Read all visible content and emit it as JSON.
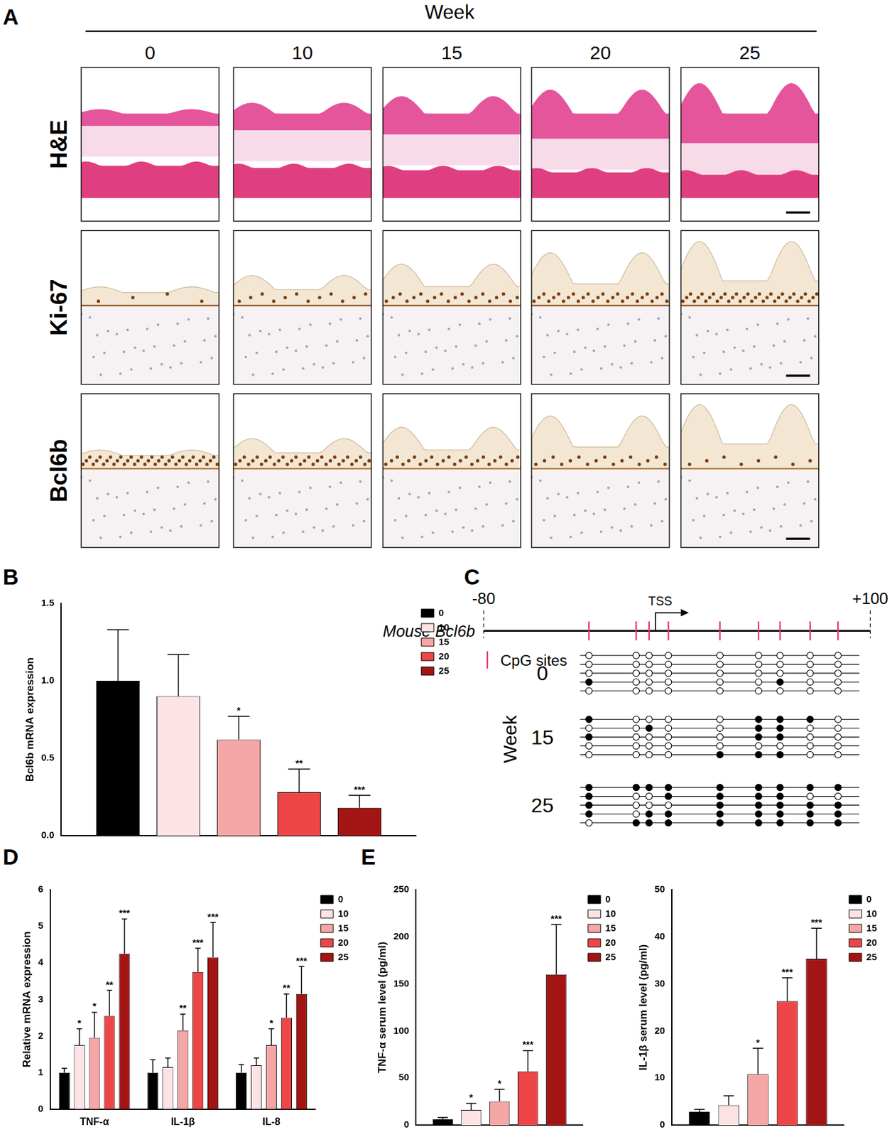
{
  "panel_labels": [
    "A",
    "B",
    "C",
    "D",
    "E"
  ],
  "panel_A": {
    "header": "Week",
    "columns": [
      "0",
      "10",
      "15",
      "20",
      "25"
    ],
    "rows": [
      "H&E",
      "Ki-67",
      "Bcl6b"
    ]
  },
  "panel_C": {
    "gene": "Mouse Bcl6b",
    "start": {
      "value": -80,
      "label": "-80"
    },
    "end": {
      "value": 100,
      "label": "+100"
    },
    "tss": {
      "value": 0,
      "label": "TSS"
    },
    "cpg_label": "CpG sites",
    "cpg_positions": [
      -31,
      -9,
      -3,
      6,
      30,
      48,
      58,
      72,
      85
    ],
    "group_title": "Week",
    "groups": [
      {
        "label": "0",
        "methylated": [
          [
            0,
            0,
            0,
            0,
            0,
            0,
            0,
            0,
            0
          ],
          [
            0,
            0,
            0,
            0,
            0,
            0,
            0,
            0,
            0
          ],
          [
            0,
            0,
            0,
            0,
            0,
            0,
            0,
            0,
            0
          ],
          [
            1,
            0,
            0,
            0,
            0,
            0,
            1,
            0,
            0
          ],
          [
            0,
            0,
            0,
            0,
            0,
            0,
            0,
            0,
            0
          ]
        ]
      },
      {
        "label": "15",
        "methylated": [
          [
            1,
            0,
            0,
            0,
            0,
            1,
            1,
            1,
            0
          ],
          [
            0,
            0,
            1,
            0,
            0,
            1,
            1,
            0,
            0
          ],
          [
            1,
            0,
            0,
            0,
            0,
            1,
            1,
            0,
            0
          ],
          [
            0,
            0,
            0,
            0,
            0,
            0,
            0,
            0,
            0
          ],
          [
            0,
            0,
            0,
            0,
            1,
            1,
            1,
            0,
            0
          ]
        ]
      },
      {
        "label": "25",
        "methylated": [
          [
            1,
            1,
            1,
            1,
            1,
            1,
            1,
            1,
            1
          ],
          [
            1,
            0,
            0,
            1,
            1,
            1,
            1,
            0,
            0
          ],
          [
            1,
            0,
            0,
            0,
            1,
            1,
            1,
            1,
            1
          ],
          [
            1,
            0,
            1,
            1,
            1,
            1,
            1,
            1,
            1
          ],
          [
            0,
            1,
            1,
            1,
            1,
            1,
            1,
            1,
            1
          ]
        ]
      }
    ]
  },
  "chart_data": [
    {
      "type": "bar",
      "y_label": "Bcl6b mRNA expression",
      "categories": [
        null
      ],
      "series": [
        {
          "name": "0",
          "color": "#000000",
          "values": [
            1.0
          ],
          "errors": [
            0.33
          ],
          "significance": [
            null
          ]
        },
        {
          "name": "10",
          "color": "#fde3e3",
          "values": [
            0.9
          ],
          "errors": [
            0.27
          ],
          "significance": [
            null
          ]
        },
        {
          "name": "15",
          "color": "#f5a6a6",
          "values": [
            0.62
          ],
          "errors": [
            0.15
          ],
          "significance": [
            "*"
          ]
        },
        {
          "name": "20",
          "color": "#ee4646",
          "values": [
            0.28
          ],
          "errors": [
            0.15
          ],
          "significance": [
            "**"
          ]
        },
        {
          "name": "25",
          "color": "#a31515",
          "values": [
            0.18
          ],
          "errors": [
            0.08
          ],
          "significance": [
            "***"
          ]
        }
      ],
      "ylim": [
        0,
        1.5
      ],
      "yticks": [
        {
          "value": 0,
          "label": "0.0"
        },
        0.5,
        {
          "value": 1,
          "label": "1.0"
        },
        1.5
      ],
      "grid": false,
      "legend": "upper right",
      "tick_labels": "y"
    },
    {
      "type": "bar",
      "y_label": "Relative mRNA expression",
      "categories": [
        "TNF-α",
        "IL-1β",
        "IL-8"
      ],
      "series": [
        {
          "name": "0",
          "color": "#000000",
          "values": [
            1.0,
            1.0,
            1.0
          ],
          "errors": [
            0.12,
            0.35,
            0.22
          ],
          "significance": [
            null,
            null,
            null
          ]
        },
        {
          "name": "10",
          "color": "#fde3e3",
          "values": [
            1.75,
            1.15,
            1.2
          ],
          "errors": [
            0.45,
            0.25,
            0.2
          ],
          "significance": [
            "*",
            null,
            null
          ]
        },
        {
          "name": "15",
          "color": "#f5a6a6",
          "values": [
            1.95,
            2.15,
            1.75
          ],
          "errors": [
            0.7,
            0.45,
            0.45
          ],
          "significance": [
            "*",
            "**",
            "*"
          ]
        },
        {
          "name": "20",
          "color": "#ee4646",
          "values": [
            2.55,
            3.75,
            2.5
          ],
          "errors": [
            0.7,
            0.65,
            0.65
          ],
          "significance": [
            "**",
            "***",
            "**"
          ]
        },
        {
          "name": "25",
          "color": "#a31515",
          "values": [
            4.25,
            4.15,
            3.15
          ],
          "errors": [
            0.95,
            0.95,
            0.75
          ],
          "significance": [
            "***",
            "***",
            "***"
          ]
        }
      ],
      "ylim": [
        0,
        6
      ],
      "yticks": [
        0,
        1,
        2,
        3,
        4,
        5,
        6
      ],
      "grid": false,
      "legend": "upper right"
    },
    {
      "type": "bar",
      "y_label": "TNF-α serum level (pg/ml)",
      "categories": [
        null
      ],
      "series": [
        {
          "name": "0",
          "color": "#000000",
          "values": [
            6
          ],
          "errors": [
            2
          ],
          "significance": [
            null
          ]
        },
        {
          "name": "10",
          "color": "#fde3e3",
          "values": [
            16
          ],
          "errors": [
            7
          ],
          "significance": [
            "*"
          ]
        },
        {
          "name": "15",
          "color": "#f5a6a6",
          "values": [
            25
          ],
          "errors": [
            13
          ],
          "significance": [
            "*"
          ]
        },
        {
          "name": "20",
          "color": "#ee4646",
          "values": [
            57
          ],
          "errors": [
            22
          ],
          "significance": [
            "***"
          ]
        },
        {
          "name": "25",
          "color": "#a31515",
          "values": [
            160
          ],
          "errors": [
            53
          ],
          "significance": [
            "***"
          ]
        }
      ],
      "ylim": [
        0,
        250
      ],
      "yticks": [
        0,
        50,
        100,
        150,
        200,
        250
      ],
      "grid": false,
      "legend": "upper right",
      "tick_labels": "y"
    },
    {
      "type": "bar",
      "y_label": "IL-1β serum level (pg/ml)",
      "categories": [
        null
      ],
      "series": [
        {
          "name": "0",
          "color": "#000000",
          "values": [
            2.8
          ],
          "errors": [
            0.5
          ],
          "significance": [
            null
          ]
        },
        {
          "name": "10",
          "color": "#fde3e3",
          "values": [
            4.2
          ],
          "errors": [
            2
          ],
          "significance": [
            null
          ]
        },
        {
          "name": "15",
          "color": "#f5a6a6",
          "values": [
            10.8
          ],
          "errors": [
            5.5
          ],
          "significance": [
            "*"
          ]
        },
        {
          "name": "20",
          "color": "#ee4646",
          "values": [
            26.3
          ],
          "errors": [
            5
          ],
          "significance": [
            "***"
          ]
        },
        {
          "name": "25",
          "color": "#a31515",
          "values": [
            35.3
          ],
          "errors": [
            6.5
          ],
          "significance": [
            "***"
          ]
        }
      ],
      "ylim": [
        0,
        50
      ],
      "yticks": [
        0,
        10,
        20,
        30,
        40,
        50
      ],
      "grid": false,
      "legend": "upper right",
      "tick_labels": "y"
    }
  ]
}
